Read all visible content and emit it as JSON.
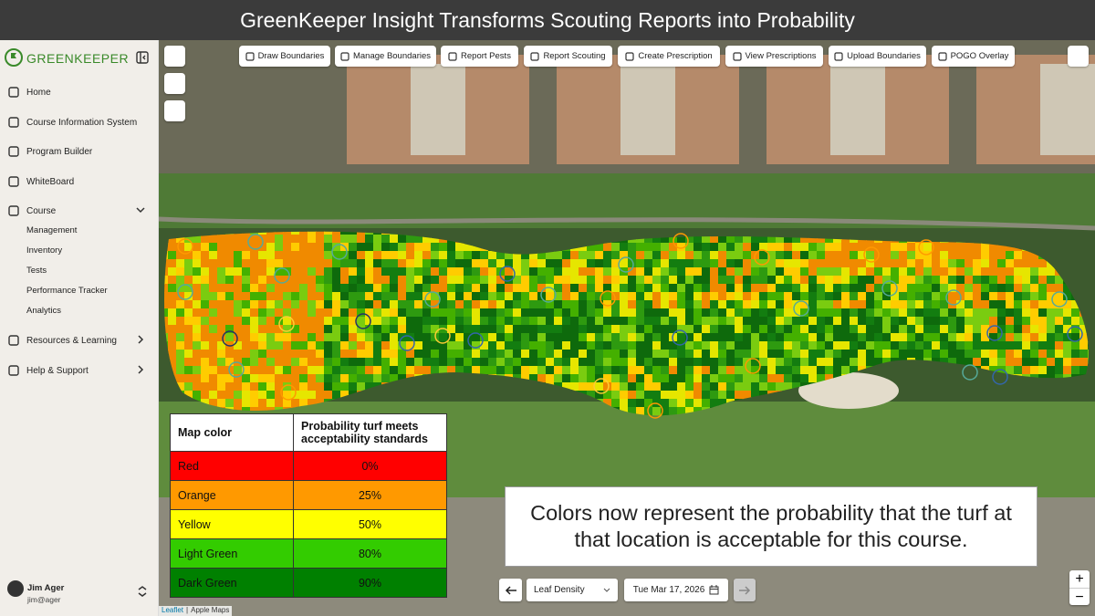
{
  "banner": {
    "title": "GreenKeeper Insight Transforms Scouting Reports into Probability"
  },
  "sidebar": {
    "brand": "GREENKEEPER",
    "nav": [
      "Home",
      "Course Information System",
      "Program Builder",
      "WhiteBoard",
      "Course"
    ],
    "course_sub": [
      "Management",
      "Inventory",
      "Tests",
      "Performance Tracker",
      "Analytics"
    ],
    "nav_more": [
      "Resources & Learning",
      "Help & Support"
    ],
    "user": {
      "name": "Jim Ager",
      "email": "jim@ager"
    }
  },
  "toolbar": [
    "Draw Boundaries",
    "Manage Boundaries",
    "Report Pests",
    "Report Scouting",
    "Create Prescription",
    "View Prescriptions",
    "Upload Boundaries",
    "POGO Overlay"
  ],
  "legend_table": {
    "header": [
      "Map color",
      "Probability turf meets acceptability standards"
    ],
    "rows": [
      [
        "Red",
        "0%"
      ],
      [
        "Orange",
        "25%"
      ],
      [
        "Yellow",
        "50%"
      ],
      [
        "Light Green",
        "80%"
      ],
      [
        "Dark Green",
        "90%"
      ]
    ]
  },
  "caption": "Colors now represent the probability that the turf at that location is acceptable for this course.",
  "controls": {
    "layer": "Leaf Density",
    "date": "Tue Mar 17, 2026"
  },
  "zoom": [
    "+",
    "−"
  ],
  "attribution": [
    "Leaflet",
    "Apple Maps"
  ]
}
